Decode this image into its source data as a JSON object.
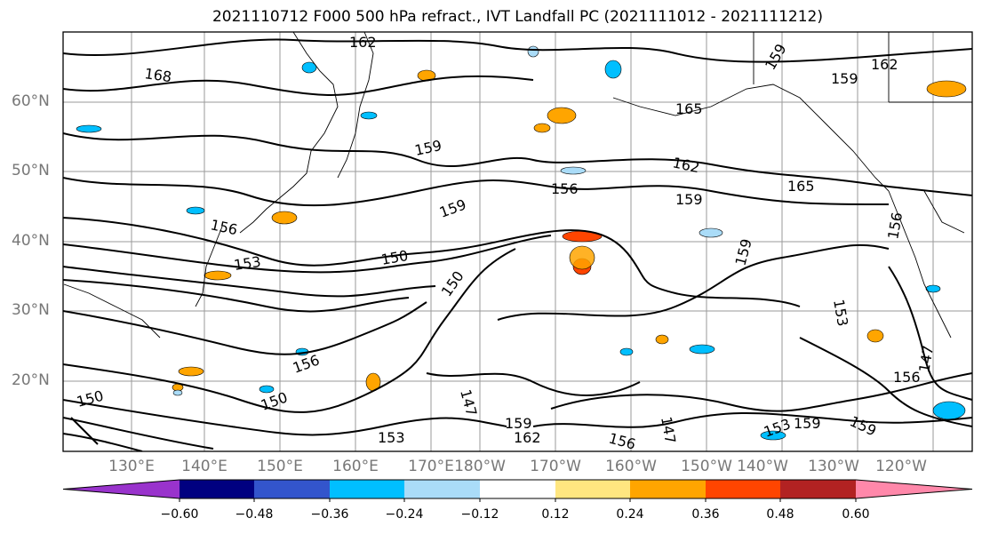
{
  "title": "2021110712 F000 500 hPa refract., IVT Landfall PC (2021111012 - 2021111212)",
  "latitude_labels": [
    "60°N",
    "50°N",
    "40°N",
    "30°N",
    "20°N"
  ],
  "longitude_labels": [
    "130°E",
    "140°E",
    "150°E",
    "160°E",
    "170°E",
    "180°W",
    "170°W",
    "160°W",
    "150°W",
    "140°W",
    "130°W",
    "120°W"
  ],
  "contour_labels": [
    "162",
    "168",
    "159",
    "159",
    "162",
    "165",
    "162",
    "159",
    "165",
    "156",
    "159",
    "159",
    "156",
    "150",
    "153",
    "150",
    "156",
    "153",
    "147",
    "159",
    "162",
    "156",
    "147",
    "153",
    "159",
    "150",
    "156",
    "153",
    "159",
    "156",
    "147",
    "159",
    "150"
  ],
  "colorbar": {
    "colors": [
      "#9933cc",
      "#000080",
      "#3355cc",
      "#00bfff",
      "#aadcf8",
      "#ffffff",
      "#ffe680",
      "#ffa500",
      "#ff4500",
      "#b22222",
      "#ff88aa"
    ],
    "tick_labels": [
      "−0.60",
      "−0.48",
      "−0.36",
      "−0.24",
      "−0.12",
      "0.12",
      "0.24",
      "0.36",
      "0.48",
      "0.60"
    ]
  },
  "colors": {
    "contour": "#000000",
    "grid": "#888888",
    "coast": "#000000"
  }
}
